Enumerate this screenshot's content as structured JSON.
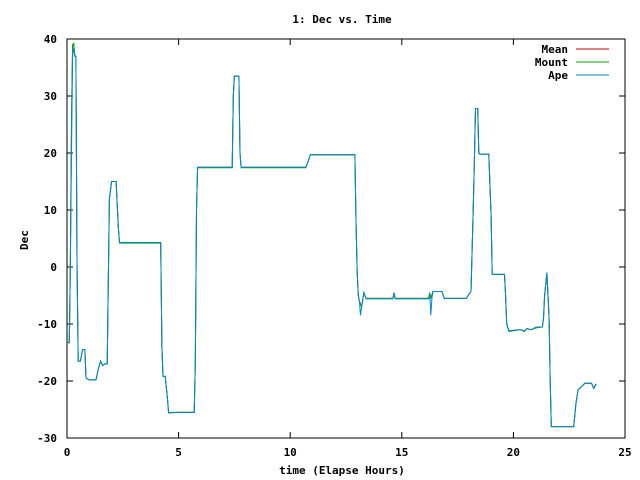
{
  "chart_data": {
    "type": "line",
    "title": "1: Dec vs. Time",
    "xlabel": "time (Elapse Hours)",
    "ylabel": "Dec",
    "xlim": [
      0,
      25
    ],
    "ylim": [
      -30,
      40
    ],
    "xticks": [
      "0",
      "5",
      "10",
      "15",
      "20",
      "25"
    ],
    "yticks": [
      "-30",
      "-20",
      "-10",
      "0",
      "10",
      "20",
      "30",
      "40"
    ],
    "grid": false,
    "legend_position": "top-right",
    "series": [
      {
        "name": "Mean",
        "color": "#cc0000",
        "points": [
          [
            0,
            -13.2
          ],
          [
            0.1,
            -13.3
          ],
          [
            0.15,
            -1
          ],
          [
            0.2,
            25.5
          ],
          [
            0.25,
            39
          ],
          [
            0.3,
            39.2
          ],
          [
            0.35,
            37
          ],
          [
            0.4,
            37
          ],
          [
            0.45,
            1
          ],
          [
            0.5,
            -16.5
          ],
          [
            0.55,
            -16.5
          ],
          [
            0.6,
            -16.5
          ],
          [
            0.7,
            -14.5
          ],
          [
            0.8,
            -14.5
          ],
          [
            0.85,
            -19.5
          ],
          [
            1.0,
            -19.8
          ],
          [
            1.3,
            -19.8
          ],
          [
            1.4,
            -18
          ],
          [
            1.5,
            -16.5
          ],
          [
            1.6,
            -17.3
          ],
          [
            1.7,
            -17
          ],
          [
            1.8,
            -17
          ],
          [
            1.9,
            12
          ],
          [
            2.0,
            15
          ],
          [
            2.2,
            15
          ],
          [
            2.3,
            7
          ],
          [
            2.35,
            4.3
          ],
          [
            4.1,
            4.3
          ],
          [
            4.2,
            4.3
          ],
          [
            4.25,
            -14
          ],
          [
            4.3,
            -19.2
          ],
          [
            4.4,
            -19.2
          ],
          [
            4.5,
            -23
          ],
          [
            4.55,
            -25.6
          ],
          [
            5.0,
            -25.5
          ],
          [
            5.7,
            -25.5
          ],
          [
            5.75,
            -17
          ],
          [
            5.8,
            10
          ],
          [
            5.85,
            17.5
          ],
          [
            7.4,
            17.5
          ],
          [
            7.45,
            30
          ],
          [
            7.5,
            33.5
          ],
          [
            7.7,
            33.5
          ],
          [
            7.75,
            20
          ],
          [
            7.8,
            17.5
          ],
          [
            10.7,
            17.5
          ],
          [
            10.8,
            18.5
          ],
          [
            10.9,
            19.7
          ],
          [
            12.9,
            19.7
          ],
          [
            12.95,
            8
          ],
          [
            13.0,
            -1
          ],
          [
            13.05,
            -5
          ],
          [
            13.1,
            -6
          ],
          [
            13.2,
            -7
          ],
          [
            13.3,
            -4.5
          ],
          [
            13.4,
            -5.5
          ],
          [
            13.5,
            -5.5
          ],
          [
            14.6,
            -5.5
          ],
          [
            14.65,
            -4.5
          ],
          [
            14.7,
            -5.5
          ],
          [
            16.2,
            -5.5
          ],
          [
            16.25,
            -4.5
          ],
          [
            16.3,
            -5.5
          ],
          [
            16.4,
            -4.3
          ],
          [
            16.8,
            -4.3
          ],
          [
            16.9,
            -5.5
          ],
          [
            17.9,
            -5.5
          ],
          [
            18.0,
            -4.8
          ],
          [
            18.1,
            -4.3
          ],
          [
            18.2,
            10
          ],
          [
            18.25,
            18
          ],
          [
            18.3,
            27.8
          ],
          [
            18.4,
            27.8
          ],
          [
            18.45,
            20
          ],
          [
            18.5,
            19.8
          ],
          [
            18.9,
            19.8
          ],
          [
            19.0,
            9
          ],
          [
            19.05,
            -1.3
          ],
          [
            19.6,
            -1.3
          ],
          [
            19.65,
            -5
          ],
          [
            19.7,
            -10
          ],
          [
            19.8,
            -11.2
          ],
          [
            20.3,
            -11
          ],
          [
            20.5,
            -11.2
          ],
          [
            20.6,
            -10.8
          ],
          [
            20.8,
            -11
          ],
          [
            21.0,
            -10.6
          ],
          [
            21.3,
            -10.5
          ],
          [
            21.35,
            -9
          ],
          [
            21.4,
            -5
          ],
          [
            21.5,
            -1
          ],
          [
            21.6,
            -9
          ],
          [
            21.65,
            -20
          ],
          [
            21.7,
            -28
          ],
          [
            22.7,
            -28
          ],
          [
            22.8,
            -24
          ],
          [
            22.9,
            -21.5
          ],
          [
            23.0,
            -21.2
          ],
          [
            23.2,
            -20.4
          ],
          [
            23.5,
            -20.4
          ],
          [
            23.6,
            -21.3
          ],
          [
            23.7,
            -20.5
          ]
        ]
      },
      {
        "name": "Mount",
        "color": "#00aa00",
        "points": [
          [
            0,
            -13.2
          ],
          [
            0.1,
            -13.3
          ],
          [
            0.12,
            -10
          ],
          [
            0.15,
            1
          ],
          [
            0.2,
            25.5
          ],
          [
            0.25,
            39
          ],
          [
            0.3,
            39.2
          ],
          [
            0.35,
            37
          ],
          [
            0.4,
            37
          ],
          [
            0.45,
            1
          ],
          [
            0.5,
            -16.5
          ],
          [
            0.55,
            -16.5
          ],
          [
            0.6,
            -16.5
          ],
          [
            0.7,
            -14.5
          ],
          [
            0.8,
            -14.5
          ],
          [
            0.85,
            -19.5
          ],
          [
            1.0,
            -19.8
          ],
          [
            1.3,
            -19.8
          ],
          [
            1.4,
            -18
          ],
          [
            1.5,
            -16.5
          ],
          [
            1.6,
            -17.3
          ],
          [
            1.7,
            -17
          ],
          [
            1.8,
            -17
          ],
          [
            1.9,
            12
          ],
          [
            2.0,
            15
          ],
          [
            2.2,
            15
          ],
          [
            2.3,
            7
          ],
          [
            2.35,
            4.2
          ],
          [
            4.1,
            4.2
          ],
          [
            4.2,
            4.2
          ],
          [
            4.25,
            -14
          ],
          [
            4.3,
            -19.2
          ],
          [
            4.4,
            -19.2
          ],
          [
            4.5,
            -23
          ],
          [
            4.55,
            -25.6
          ],
          [
            5.0,
            -25.5
          ],
          [
            5.7,
            -25.5
          ],
          [
            5.75,
            -17
          ],
          [
            5.8,
            10
          ],
          [
            5.85,
            17.4
          ],
          [
            7.4,
            17.4
          ],
          [
            7.45,
            30
          ],
          [
            7.5,
            33.5
          ],
          [
            7.7,
            33.5
          ],
          [
            7.75,
            20
          ],
          [
            7.8,
            17.4
          ],
          [
            10.7,
            17.4
          ],
          [
            10.8,
            18.5
          ],
          [
            10.9,
            19.7
          ],
          [
            12.9,
            19.7
          ],
          [
            12.95,
            8
          ],
          [
            13.0,
            -1
          ],
          [
            13.05,
            -5
          ],
          [
            13.1,
            -6
          ],
          [
            13.2,
            -7
          ],
          [
            13.3,
            -4.5
          ],
          [
            13.4,
            -5.6
          ],
          [
            13.5,
            -5.6
          ],
          [
            14.6,
            -5.6
          ],
          [
            14.65,
            -4.5
          ],
          [
            14.7,
            -5.6
          ],
          [
            16.2,
            -5.6
          ],
          [
            16.25,
            -4.5
          ],
          [
            16.3,
            -5.5
          ],
          [
            16.4,
            -4.3
          ],
          [
            16.8,
            -4.3
          ],
          [
            16.9,
            -5.5
          ],
          [
            17.9,
            -5.5
          ],
          [
            18.0,
            -4.8
          ],
          [
            18.1,
            -4.3
          ],
          [
            18.2,
            10
          ],
          [
            18.25,
            18
          ],
          [
            18.3,
            27.8
          ],
          [
            18.4,
            27.8
          ],
          [
            18.45,
            20
          ],
          [
            18.5,
            19.8
          ],
          [
            18.9,
            19.8
          ],
          [
            19.0,
            9
          ],
          [
            19.05,
            -1.3
          ],
          [
            19.6,
            -1.3
          ],
          [
            19.65,
            -5
          ],
          [
            19.7,
            -10
          ],
          [
            19.8,
            -11.3
          ],
          [
            20.3,
            -11
          ],
          [
            20.5,
            -11.3
          ],
          [
            20.6,
            -10.8
          ],
          [
            20.8,
            -11
          ],
          [
            21.0,
            -10.7
          ],
          [
            21.3,
            -10.5
          ],
          [
            21.35,
            -9
          ],
          [
            21.4,
            -5
          ],
          [
            21.5,
            -1
          ],
          [
            21.6,
            -9
          ],
          [
            21.65,
            -20
          ],
          [
            21.7,
            -28
          ],
          [
            22.7,
            -28
          ],
          [
            22.8,
            -24
          ],
          [
            22.9,
            -21.5
          ],
          [
            23.0,
            -21.2
          ],
          [
            23.2,
            -20.4
          ],
          [
            23.5,
            -20.4
          ],
          [
            23.6,
            -21.3
          ],
          [
            23.7,
            -20.5
          ]
        ]
      },
      {
        "name": "Ape",
        "color": "#0088cc",
        "points": [
          [
            0,
            -13.2
          ],
          [
            0.1,
            -13.3
          ],
          [
            0.15,
            -1
          ],
          [
            0.2,
            20
          ],
          [
            0.25,
            37
          ],
          [
            0.3,
            38.5
          ],
          [
            0.35,
            37
          ],
          [
            0.4,
            37
          ],
          [
            0.45,
            1
          ],
          [
            0.5,
            -16.5
          ],
          [
            0.55,
            -16.5
          ],
          [
            0.6,
            -16.5
          ],
          [
            0.7,
            -14.5
          ],
          [
            0.8,
            -14.5
          ],
          [
            0.85,
            -19.5
          ],
          [
            1.0,
            -19.8
          ],
          [
            1.3,
            -19.8
          ],
          [
            1.4,
            -18
          ],
          [
            1.5,
            -16.5
          ],
          [
            1.6,
            -17.3
          ],
          [
            1.7,
            -17
          ],
          [
            1.8,
            -17
          ],
          [
            1.9,
            12
          ],
          [
            2.0,
            15
          ],
          [
            2.2,
            15
          ],
          [
            2.3,
            7
          ],
          [
            2.35,
            4.3
          ],
          [
            4.1,
            4.3
          ],
          [
            4.2,
            4.3
          ],
          [
            4.25,
            -14
          ],
          [
            4.3,
            -19.2
          ],
          [
            4.4,
            -19.2
          ],
          [
            4.5,
            -23
          ],
          [
            4.55,
            -25.5
          ],
          [
            5.0,
            -25.5
          ],
          [
            5.7,
            -25.5
          ],
          [
            5.75,
            -17
          ],
          [
            5.8,
            10
          ],
          [
            5.85,
            17.5
          ],
          [
            7.4,
            17.5
          ],
          [
            7.45,
            30
          ],
          [
            7.5,
            33.5
          ],
          [
            7.7,
            33.5
          ],
          [
            7.75,
            20
          ],
          [
            7.8,
            17.5
          ],
          [
            10.7,
            17.5
          ],
          [
            10.8,
            18.5
          ],
          [
            10.9,
            19.7
          ],
          [
            12.9,
            19.7
          ],
          [
            12.95,
            8
          ],
          [
            13.0,
            -1
          ],
          [
            13.05,
            -5
          ],
          [
            13.1,
            -6
          ],
          [
            13.15,
            -8.5
          ],
          [
            13.2,
            -7
          ],
          [
            13.3,
            -4.5
          ],
          [
            13.4,
            -5.5
          ],
          [
            13.5,
            -5.5
          ],
          [
            14.6,
            -5.5
          ],
          [
            14.65,
            -4.5
          ],
          [
            14.7,
            -5.5
          ],
          [
            16.2,
            -5.5
          ],
          [
            16.25,
            -4.5
          ],
          [
            16.3,
            -8.5
          ],
          [
            16.35,
            -5.5
          ],
          [
            16.4,
            -4.3
          ],
          [
            16.8,
            -4.3
          ],
          [
            16.9,
            -5.5
          ],
          [
            17.9,
            -5.5
          ],
          [
            18.0,
            -4.8
          ],
          [
            18.1,
            -4.3
          ],
          [
            18.2,
            10
          ],
          [
            18.25,
            18
          ],
          [
            18.3,
            27.8
          ],
          [
            18.4,
            27.8
          ],
          [
            18.45,
            20
          ],
          [
            18.5,
            19.8
          ],
          [
            18.9,
            19.8
          ],
          [
            19.0,
            9
          ],
          [
            19.05,
            -1.3
          ],
          [
            19.6,
            -1.3
          ],
          [
            19.65,
            -5
          ],
          [
            19.7,
            -10
          ],
          [
            19.8,
            -11.2
          ],
          [
            20.3,
            -11
          ],
          [
            20.5,
            -11.2
          ],
          [
            20.6,
            -10.8
          ],
          [
            20.8,
            -11
          ],
          [
            21.0,
            -10.6
          ],
          [
            21.3,
            -10.5
          ],
          [
            21.35,
            -9
          ],
          [
            21.4,
            -5
          ],
          [
            21.5,
            -1
          ],
          [
            21.6,
            -9
          ],
          [
            21.65,
            -20
          ],
          [
            21.7,
            -28
          ],
          [
            22.7,
            -28
          ],
          [
            22.8,
            -24
          ],
          [
            22.9,
            -21.5
          ],
          [
            23.0,
            -21.2
          ],
          [
            23.2,
            -20.4
          ],
          [
            23.5,
            -20.4
          ],
          [
            23.6,
            -21.3
          ],
          [
            23.7,
            -20.5
          ]
        ]
      }
    ]
  }
}
